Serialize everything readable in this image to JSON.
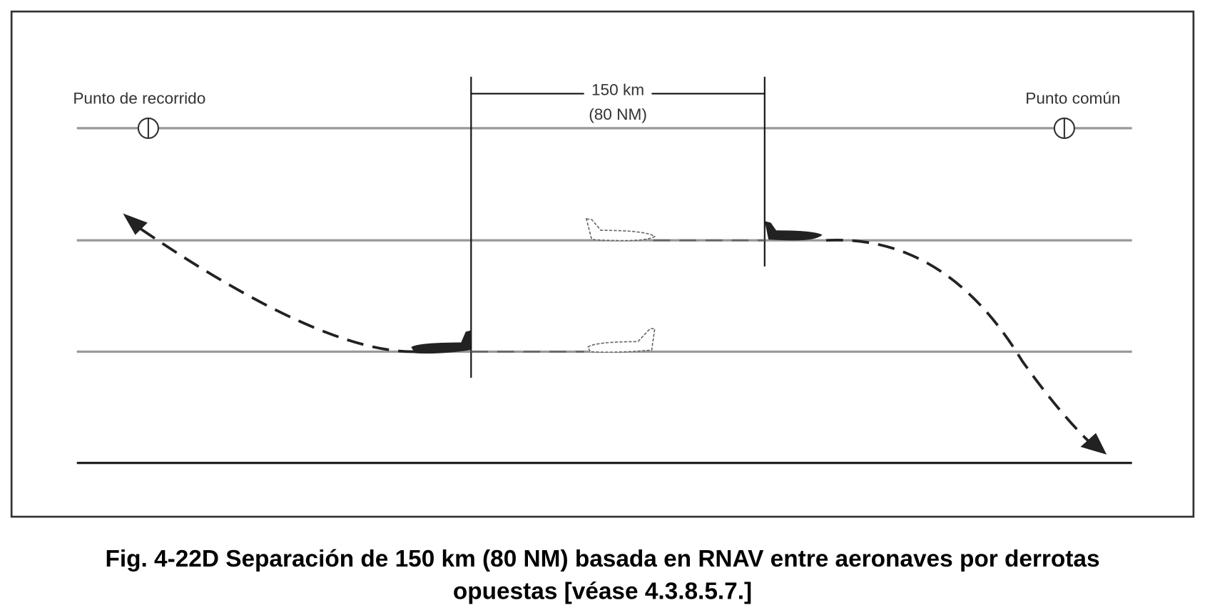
{
  "labels": {
    "waypoint": "Punto de recorrido",
    "common_point": "Punto común",
    "distance_km": "150 km",
    "distance_nm": "(80 NM)"
  },
  "caption": {
    "lines": [
      "Fig. 4-22D Separación de 150 km (80 NM) basada en RNAV entre aeronaves por derrotas",
      "opuestas [véase 4.3.8.5.7.]"
    ]
  }
}
